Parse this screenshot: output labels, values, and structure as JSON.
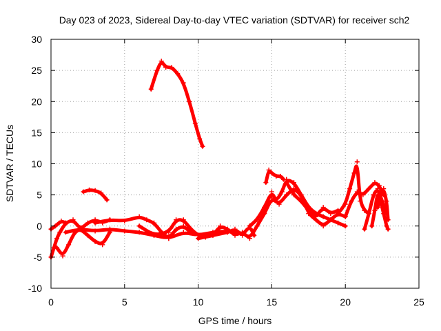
{
  "chart_data": {
    "type": "scatter",
    "title": "Day 023 of 2023, Sidereal Day-to-day VTEC variation (SDTVAR) for receiver sch2",
    "xlabel": "GPS time / hours",
    "ylabel": "SDTVAR / TECUs",
    "xlim": [
      0,
      25
    ],
    "ylim": [
      -10,
      30
    ],
    "xticks": [
      0,
      5,
      10,
      15,
      20,
      25
    ],
    "yticks": [
      -10,
      -5,
      0,
      5,
      10,
      15,
      20,
      25,
      30
    ],
    "grid": true,
    "color": "#ff0000",
    "marker": "plus",
    "series": [
      {
        "name": "s1",
        "x": [
          6.8,
          7.2,
          7.5,
          7.8,
          8.2,
          8.6,
          9.0,
          9.4,
          9.8,
          10.1,
          10.3
        ],
        "y": [
          22,
          25,
          26.5,
          25.5,
          25.5,
          24.5,
          23,
          20,
          16.5,
          14,
          12.8
        ]
      },
      {
        "name": "s2",
        "x": [
          2.2,
          2.6,
          3.0,
          3.4,
          3.8
        ],
        "y": [
          5.5,
          5.8,
          5.7,
          5.3,
          4.2
        ]
      },
      {
        "name": "s3",
        "x": [
          0.0,
          0.2,
          0.4,
          0.6,
          1.0,
          1.5,
          2.0,
          2.5,
          3.0,
          3.5,
          4.0
        ],
        "y": [
          -5.0,
          -3.5,
          -2.0,
          -1.0,
          0.5,
          1.0,
          -0.5,
          0.5,
          1.0,
          0.5,
          1.0
        ]
      },
      {
        "name": "s4",
        "x": [
          0.0,
          0.3,
          0.7,
          1.0
        ],
        "y": [
          -0.5,
          0.0,
          0.8,
          0.5
        ]
      },
      {
        "name": "s5",
        "x": [
          0.4,
          0.8,
          1.2,
          1.6,
          2.0,
          2.5,
          3.0,
          3.5,
          4.0
        ],
        "y": [
          -3.5,
          -4.8,
          -3.0,
          -1.0,
          -0.5,
          -1.5,
          -2.5,
          -3.0,
          -1.0
        ]
      },
      {
        "name": "s6",
        "x": [
          1.0,
          2.0,
          3.0,
          4.0,
          5.0,
          6.0,
          7.0,
          8.0,
          9.0,
          10.0,
          11.0,
          12.0,
          13.0
        ],
        "y": [
          -1.0,
          -0.5,
          -0.8,
          -0.5,
          -0.8,
          -1.0,
          -1.5,
          -2.0,
          -1.0,
          -1.5,
          -1.0,
          -0.8,
          -1.2
        ]
      },
      {
        "name": "s7",
        "x": [
          3.0,
          4.0,
          5.0,
          6.0,
          6.5,
          7.0,
          7.5,
          8.0,
          8.5,
          9.0,
          9.5
        ],
        "y": [
          0.5,
          1.0,
          0.8,
          1.5,
          1.0,
          0.5,
          -1.0,
          -2.0,
          -0.5,
          0.0,
          -1.0
        ]
      },
      {
        "name": "s8",
        "x": [
          6.0,
          7.0,
          8.0,
          8.5,
          9.0,
          9.5,
          10.0,
          10.5,
          11.0,
          12.0
        ],
        "y": [
          0.0,
          -1.5,
          -1.0,
          1.0,
          1.0,
          -0.5,
          -1.5,
          -1.8,
          -1.5,
          -1.0
        ]
      },
      {
        "name": "s9",
        "x": [
          10.0,
          11.0,
          11.5,
          12.0,
          12.5,
          13.0,
          13.5,
          14.0,
          14.5
        ],
        "y": [
          -2.0,
          -1.5,
          0.0,
          -0.5,
          -1.5,
          -1.0,
          -2.0,
          0.0,
          2.0
        ]
      },
      {
        "name": "s10",
        "x": [
          12.0,
          12.5,
          13.0,
          13.5,
          13.8
        ],
        "y": [
          -1.0,
          -0.5,
          -1.5,
          0.0,
          -1.5
        ]
      },
      {
        "name": "s11",
        "x": [
          13.5,
          14.0,
          14.5,
          15.0,
          15.3,
          15.7,
          16.0,
          16.5,
          17.0,
          17.5,
          18.0,
          18.5,
          19.0,
          19.5,
          20.0
        ],
        "y": [
          0.0,
          1.0,
          3.0,
          5.5,
          4.0,
          5.5,
          7.5,
          7.0,
          5.0,
          3.0,
          2.0,
          1.5,
          1.0,
          0.5,
          0.0
        ]
      },
      {
        "name": "s12",
        "x": [
          14.5,
          15.0,
          15.5,
          16.0,
          16.5,
          17.0,
          17.5,
          18.0,
          18.5,
          19.0,
          19.5,
          20.0
        ],
        "y": [
          2.0,
          4.5,
          3.5,
          5.0,
          6.0,
          5.0,
          2.0,
          1.0,
          0.0,
          1.0,
          2.0,
          1.5
        ]
      },
      {
        "name": "s13",
        "x": [
          14.6,
          14.8,
          15.0,
          15.3,
          15.6,
          15.8
        ],
        "y": [
          7.0,
          9.0,
          8.5,
          8.0,
          8.0,
          7.5
        ]
      },
      {
        "name": "s14",
        "x": [
          16.0,
          16.5,
          17.0,
          17.5,
          18.0,
          18.5,
          19.0,
          19.5
        ],
        "y": [
          7.0,
          5.0,
          4.0,
          2.5,
          1.5,
          3.0,
          2.0,
          2.5
        ]
      },
      {
        "name": "s15",
        "x": [
          19.5,
          20.0,
          20.3,
          20.6,
          20.8,
          21.0,
          21.3,
          21.6
        ],
        "y": [
          2.0,
          3.5,
          6.0,
          8.5,
          10.3,
          4.0,
          2.5,
          2.0
        ]
      },
      {
        "name": "s16",
        "x": [
          20.0,
          20.4,
          20.8,
          21.2,
          21.6,
          22.0,
          22.3,
          22.6
        ],
        "y": [
          1.5,
          4.0,
          5.5,
          5.0,
          6.0,
          7.0,
          6.5,
          5.0
        ]
      },
      {
        "name": "s17",
        "x": [
          21.3,
          21.6,
          21.9,
          22.2,
          22.5,
          22.8
        ],
        "y": [
          -0.5,
          2.0,
          5.0,
          6.0,
          4.0,
          2.0
        ]
      },
      {
        "name": "s18",
        "x": [
          21.8,
          22.0,
          22.2,
          22.4,
          22.6,
          22.8,
          22.9
        ],
        "y": [
          0.0,
          2.5,
          5.5,
          4.0,
          2.0,
          0.0,
          -0.5
        ]
      },
      {
        "name": "s19",
        "x": [
          22.2,
          22.4,
          22.6,
          22.8,
          22.9
        ],
        "y": [
          3.0,
          5.0,
          6.0,
          4.0,
          1.0
        ]
      }
    ]
  }
}
